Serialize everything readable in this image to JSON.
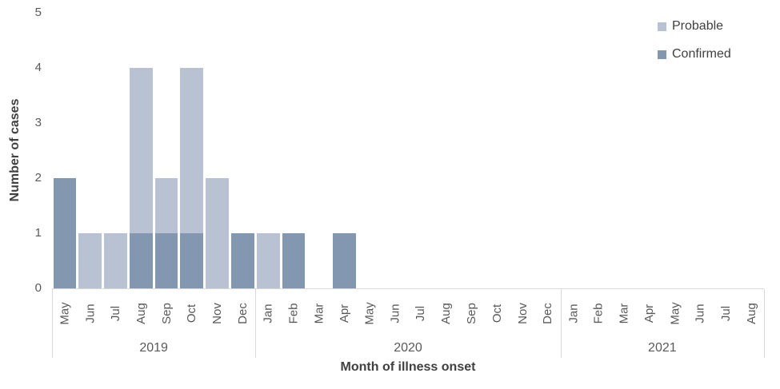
{
  "chart_data": {
    "type": "bar",
    "stacked": true,
    "xlabel": "Month of illness onset",
    "ylabel": "Number of cases",
    "ylim": [
      0,
      5
    ],
    "yticks": [
      "0",
      "1",
      "2",
      "3",
      "4",
      "5"
    ],
    "grid": false,
    "legend_position": "top-right",
    "year_groups": [
      {
        "label": "2019",
        "months": [
          "May",
          "Jun",
          "Jul",
          "Aug",
          "Sep",
          "Oct",
          "Nov",
          "Dec"
        ]
      },
      {
        "label": "2020",
        "months": [
          "Jan",
          "Feb",
          "Mar",
          "Apr",
          "May",
          "Jun",
          "Jul",
          "Aug",
          "Sep",
          "Oct",
          "Nov",
          "Dec"
        ]
      },
      {
        "label": "2021",
        "months": [
          "Jan",
          "Feb",
          "Mar",
          "Apr",
          "May",
          "Jun",
          "Jul",
          "Aug"
        ]
      }
    ],
    "series": [
      {
        "name": "Confirmed",
        "color": "#8497B1",
        "values": [
          2,
          0,
          0,
          1,
          1,
          1,
          0,
          1,
          0,
          1,
          0,
          1,
          0,
          0,
          0,
          0,
          0,
          0,
          0,
          0,
          0,
          0,
          0,
          0,
          0,
          0,
          0,
          0
        ]
      },
      {
        "name": "Probable",
        "color": "#B8C2D2",
        "values": [
          0,
          1,
          1,
          3,
          1,
          3,
          2,
          0,
          1,
          0,
          0,
          0,
          0,
          0,
          0,
          0,
          0,
          0,
          0,
          0,
          0,
          0,
          0,
          0,
          0,
          0,
          0,
          0
        ]
      }
    ]
  },
  "legend": {
    "items": [
      {
        "label": "Probable",
        "color": "#B8C2D2"
      },
      {
        "label": "Confirmed",
        "color": "#8497B1"
      }
    ]
  },
  "colors": {
    "axis_line": "#d9d9d9",
    "tick_text": "#595959",
    "title_text": "#404040"
  }
}
